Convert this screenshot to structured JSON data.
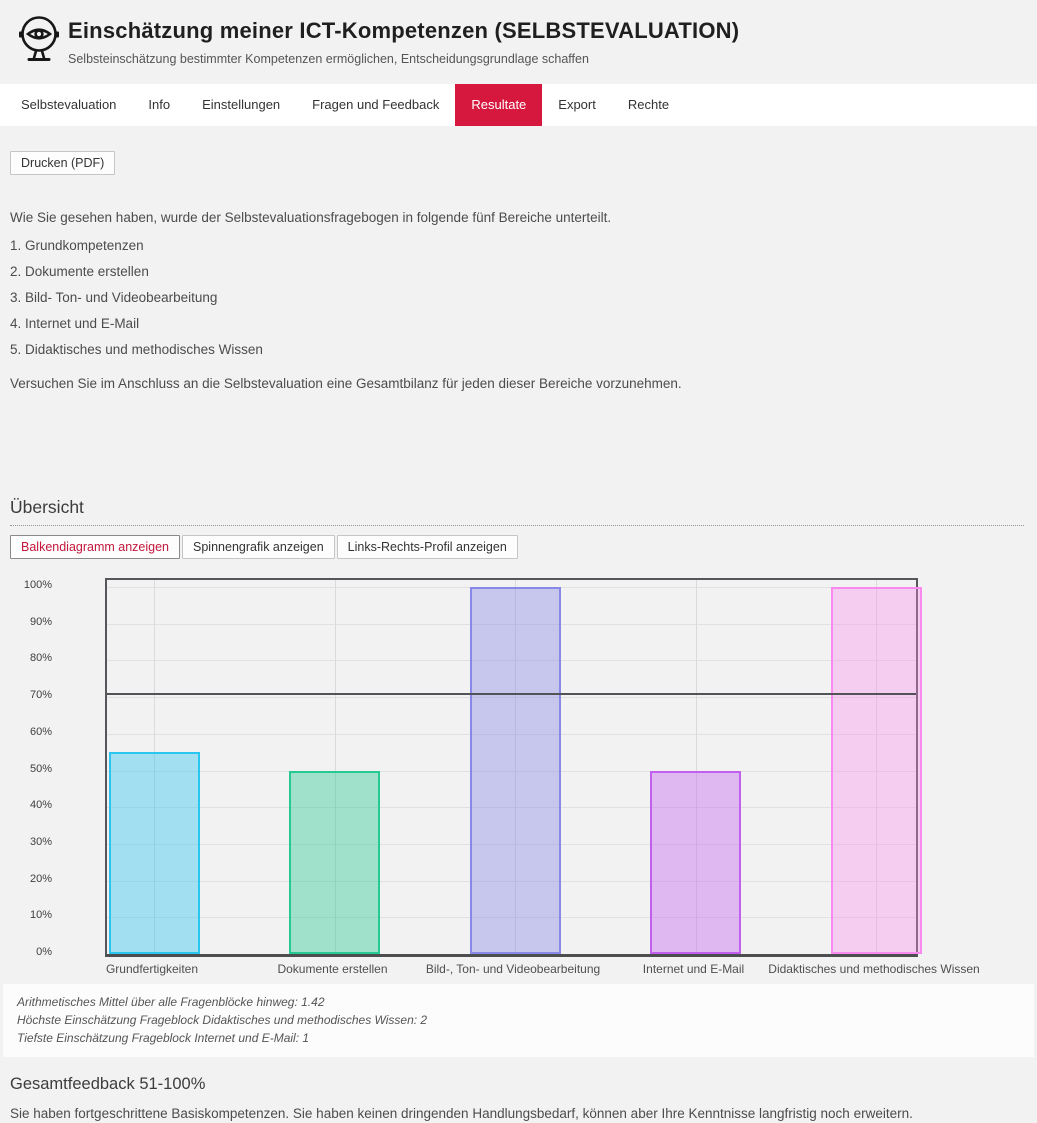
{
  "header": {
    "title": "Einschätzung meiner ICT-Kompetenzen (SELBSTEVALUATION)",
    "subtitle": "Selbsteinschätzung bestimmter Kompetenzen ermöglichen, Entscheidungsgrundlage schaffen",
    "logo_icon": "eye-mirror-icon"
  },
  "nav": {
    "active_color": "#d6183f",
    "tabs": [
      {
        "label": "Selbstevaluation",
        "active": false
      },
      {
        "label": "Info",
        "active": false
      },
      {
        "label": "Einstellungen",
        "active": false
      },
      {
        "label": "Fragen und Feedback",
        "active": false
      },
      {
        "label": "Resultate",
        "active": true
      },
      {
        "label": "Export",
        "active": false
      },
      {
        "label": "Rechte",
        "active": false
      }
    ]
  },
  "toolbar": {
    "print_label": "Drucken (PDF)"
  },
  "intro": {
    "lead": "Wie Sie gesehen haben, wurde der Selbstevaluationsfragebogen in folgende fünf Bereiche unterteilt.",
    "items": [
      "1. Grundkompetenzen",
      "2. Dokumente erstellen",
      "3. Bild- Ton- und Videobearbeitung",
      "4. Internet und E-Mail",
      "5. Didaktisches und methodisches Wissen"
    ],
    "closing": "Versuchen Sie im Anschluss an die Selbstevaluation eine Gesamtbilanz für jeden dieser Bereiche vorzunehmen."
  },
  "overview": {
    "heading": "Übersicht",
    "buttons": [
      {
        "label": "Balkendiagramm anzeigen",
        "active": true
      },
      {
        "label": "Spinnengrafik anzeigen",
        "active": false
      },
      {
        "label": "Links-Rechts-Profil anzeigen",
        "active": false
      }
    ]
  },
  "chart_data": {
    "type": "bar",
    "title": "",
    "xlabel": "",
    "ylabel": "",
    "categories": [
      "Grundfertigkeiten",
      "Dokumente erstellen",
      "Bild-, Ton- und Videobearbeitung",
      "Internet und E-Mail",
      "Didaktisches und methodisches Wissen"
    ],
    "values": [
      55,
      50,
      100,
      50,
      100
    ],
    "unit": "%",
    "ylim": [
      0,
      100
    ],
    "ytick_step": 10,
    "ytick_labels": [
      "100%",
      "90%",
      "80%",
      "70%",
      "60%",
      "50%",
      "40%",
      "30%",
      "20%",
      "10%",
      "0%"
    ],
    "grid": true,
    "legend": "none",
    "mean_line_percent": 71,
    "bar_colors": [
      {
        "fill": "rgba(43,198,239,0.4)",
        "border": "#2bc6ef"
      },
      {
        "fill": "rgba(38,200,147,0.4)",
        "border": "#26c893"
      },
      {
        "fill": "rgba(136,136,232,0.4)",
        "border": "#8888e8"
      },
      {
        "fill": "rgba(194,95,239,0.4)",
        "border": "#c25fef"
      },
      {
        "fill": "rgba(250,138,240,0.35)",
        "border": "#fa8af0"
      }
    ]
  },
  "stats": {
    "lines": [
      "Arithmetisches Mittel über alle Fragenblöcke hinweg: 1.42",
      "Höchste Einschätzung Frageblock Didaktisches und methodisches Wissen: 2",
      "Tiefste Einschätzung Frageblock Internet und E-Mail: 1"
    ]
  },
  "feedback": {
    "heading": "Gesamtfeedback 51-100%",
    "text": "Sie haben fortgeschrittene Basiskompetenzen. Sie haben keinen dringenden Handlungsbedarf, können aber Ihre Kenntnisse langfristig noch erweitern."
  }
}
